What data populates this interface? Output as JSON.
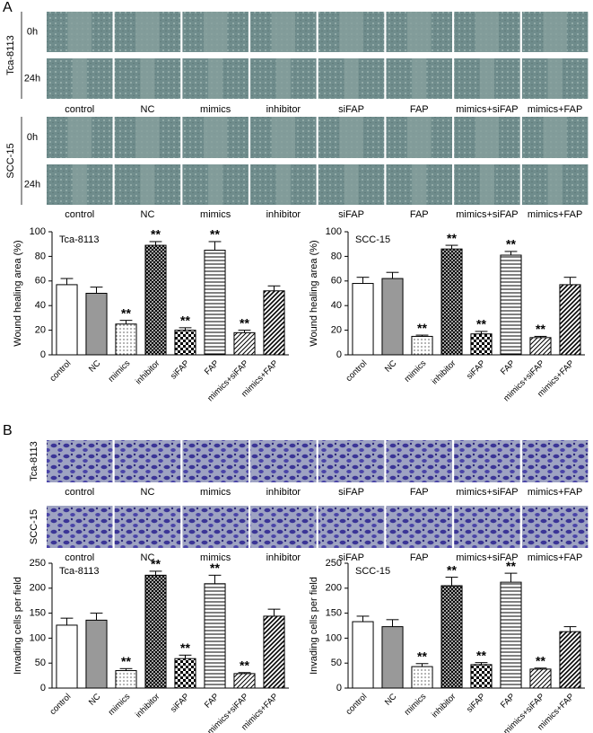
{
  "panels": [
    "A",
    "B"
  ],
  "wound_assay": {
    "cell_lines": [
      "Tca-8113",
      "SCC-15"
    ],
    "times": [
      "0h",
      "24h"
    ],
    "groups": [
      "control",
      "NC",
      "mimics",
      "inhibitor",
      "siFAP",
      "FAP",
      "mimics+siFAP",
      "mimics+FAP"
    ]
  },
  "invasion_assay": {
    "cell_lines": [
      "Tca-8113",
      "SCC-15"
    ],
    "groups": [
      "control",
      "NC",
      "mimics",
      "inhibitor",
      "siFAP",
      "FAP",
      "mimics+siFAP",
      "mimics+FAP"
    ]
  },
  "chart_data": [
    {
      "type": "bar",
      "title": "Tca-8113",
      "y_label": "Wound healing area (%)",
      "categories": [
        "control",
        "NC",
        "mimics",
        "inhibitor",
        "siFAP",
        "FAP",
        "mimics+siFAP",
        "mimics+FAP"
      ],
      "values": [
        57,
        50,
        25,
        89,
        20,
        85,
        18,
        52
      ],
      "error": [
        5,
        5,
        3,
        3,
        2,
        7,
        2,
        4
      ],
      "significance": [
        null,
        null,
        "**",
        "**",
        "**",
        "**",
        "**",
        null
      ],
      "fills": [
        "#ffffff",
        "#999999",
        "dots",
        "cross",
        "checker",
        "hlines",
        "diag",
        "diag2"
      ],
      "ylim": [
        0,
        100
      ],
      "yticks": [
        0,
        20,
        40,
        60,
        80,
        100
      ],
      "grid": false
    },
    {
      "type": "bar",
      "title": "SCC-15",
      "y_label": "Wound healing area (%)",
      "categories": [
        "control",
        "NC",
        "mimics",
        "inhibitor",
        "siFAP",
        "FAP",
        "mimics+siFAP",
        "mimics+FAP"
      ],
      "values": [
        58,
        62,
        15,
        86,
        17,
        81,
        14,
        57
      ],
      "error": [
        5,
        5,
        1,
        3,
        2,
        3,
        1,
        6
      ],
      "significance": [
        null,
        null,
        "**",
        "**",
        "**",
        "**",
        "**",
        null
      ],
      "fills": [
        "#ffffff",
        "#999999",
        "dots",
        "cross",
        "checker",
        "hlines",
        "diag",
        "diag2"
      ],
      "ylim": [
        0,
        100
      ],
      "yticks": [
        0,
        20,
        40,
        60,
        80,
        100
      ],
      "grid": false
    },
    {
      "type": "bar",
      "title": "Tca-8113",
      "y_label": "Invading cells per field",
      "categories": [
        "control",
        "NC",
        "mimics",
        "inhibitor",
        "siFAP",
        "FAP",
        "mimics+siFAP",
        "mimics+FAP"
      ],
      "values": [
        126,
        136,
        35,
        226,
        59,
        209,
        29,
        144
      ],
      "error": [
        14,
        14,
        4,
        8,
        7,
        17,
        2,
        14
      ],
      "significance": [
        null,
        null,
        "**",
        "**",
        "**",
        "**",
        "**",
        null
      ],
      "fills": [
        "#ffffff",
        "#999999",
        "dots",
        "cross",
        "checker",
        "hlines",
        "diag",
        "diag2"
      ],
      "ylim": [
        0,
        250
      ],
      "yticks": [
        0,
        50,
        100,
        150,
        200,
        250
      ],
      "grid": false
    },
    {
      "type": "bar",
      "title": "SCC-15",
      "y_label": "Invading cells per field",
      "categories": [
        "control",
        "NC",
        "mimics",
        "inhibitor",
        "siFAP",
        "FAP",
        "mimics+siFAP",
        "mimics+FAP"
      ],
      "values": [
        133,
        123,
        43,
        205,
        47,
        212,
        38,
        113
      ],
      "error": [
        11,
        14,
        6,
        17,
        4,
        18,
        2,
        10
      ],
      "significance": [
        null,
        null,
        "**",
        "**",
        "**",
        "**",
        "**",
        null
      ],
      "fills": [
        "#ffffff",
        "#999999",
        "dots",
        "cross",
        "checker",
        "hlines",
        "diag",
        "diag2"
      ],
      "ylim": [
        0,
        250
      ],
      "yticks": [
        0,
        50,
        100,
        150,
        200,
        250
      ],
      "grid": false
    }
  ]
}
